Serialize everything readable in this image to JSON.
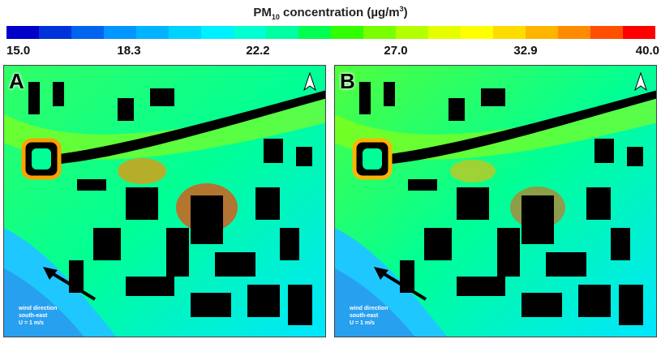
{
  "legend": {
    "title_prefix": "PM",
    "title_subscript": "10",
    "title_mid": " concentration (µg/m",
    "title_superscript": "3",
    "title_suffix": ")",
    "ticks": [
      "15.0",
      "18.3",
      "22.2",
      "27.0",
      "32.9",
      "40.0"
    ],
    "colors": [
      "#0000c8",
      "#0032dc",
      "#0064f0",
      "#0096ff",
      "#00b4ff",
      "#00d2ff",
      "#00f0ff",
      "#00ffd2",
      "#00ffa0",
      "#00ff50",
      "#32ff00",
      "#78ff00",
      "#b4ff00",
      "#e6ff00",
      "#ffff00",
      "#ffdc00",
      "#ffb400",
      "#ff8c00",
      "#ff5000",
      "#ff0000"
    ]
  },
  "panels": [
    {
      "label": "A",
      "wind_line1": "wind direction",
      "wind_line2": "south-east",
      "wind_line3": "U = 1 m/s"
    },
    {
      "label": "B",
      "wind_line1": "wind direction",
      "wind_line2": "south-east",
      "wind_line3": "U = 1 m/s"
    }
  ]
}
